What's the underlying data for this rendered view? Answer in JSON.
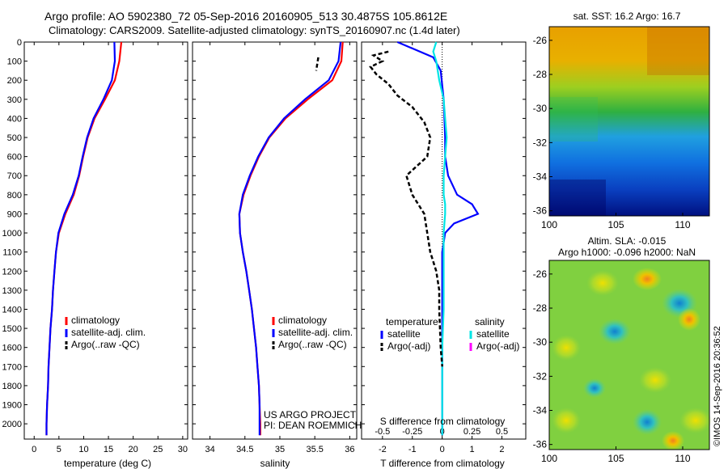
{
  "header": {
    "line1": "Argo profile: AO 5902380_72 05-Sep-2016 20160905_513 30.4875S 105.8612E",
    "line2": "Climatology: CARS2009. Satellite-adjusted climatology: synTS_20160907.nc (1.4d later)"
  },
  "chart_data": [
    {
      "type": "line",
      "id": "temperature",
      "xlabel": "temperature (deg C)",
      "ylabel": "",
      "xlim": [
        -2,
        31
      ],
      "ylim": [
        2080,
        0
      ],
      "y_reversed": true,
      "xticks": [
        0,
        5,
        10,
        15,
        20,
        25,
        30
      ],
      "yticks": [
        0,
        100,
        200,
        300,
        400,
        500,
        600,
        700,
        800,
        900,
        1000,
        1100,
        1200,
        1300,
        1400,
        1500,
        1600,
        1700,
        1800,
        1900,
        2000
      ],
      "legend": [
        "climatology",
        "satellite-adj. clim.",
        "Argo(..raw -QC)"
      ],
      "series": [
        {
          "name": "climatology",
          "color": "#ff0000",
          "x": [
            17.6,
            17.2,
            16.3,
            14.3,
            12.2,
            10.8,
            9.9,
            9.1,
            8.0,
            6.3,
            5.0,
            4.4,
            4.1,
            3.8,
            3.6,
            3.3,
            3.1,
            2.9,
            2.8,
            2.6,
            2.5,
            2.5
          ],
          "y": [
            0,
            100,
            200,
            300,
            400,
            500,
            600,
            700,
            800,
            900,
            1000,
            1100,
            1200,
            1300,
            1400,
            1500,
            1600,
            1700,
            1800,
            1900,
            2000,
            2060
          ]
        },
        {
          "name": "satellite-adj. clim.",
          "color": "#0000ff",
          "x": [
            16.2,
            16.3,
            15.7,
            14.0,
            12.0,
            10.7,
            9.8,
            9.0,
            7.8,
            6.1,
            4.9,
            4.4,
            4.1,
            3.8,
            3.6,
            3.3,
            3.1,
            2.9,
            2.8,
            2.6,
            2.5,
            2.5
          ],
          "y": [
            0,
            100,
            200,
            300,
            400,
            500,
            600,
            700,
            800,
            900,
            1000,
            1100,
            1200,
            1300,
            1400,
            1500,
            1600,
            1700,
            1800,
            1900,
            2000,
            2060
          ]
        }
      ]
    },
    {
      "type": "line",
      "id": "salinity",
      "xlabel": "salinity",
      "xlim": [
        33.75,
        36.1
      ],
      "ylim": [
        2080,
        0
      ],
      "y_reversed": true,
      "xticks": [
        34,
        34.5,
        35,
        35.5,
        36
      ],
      "legend": [
        "climatology",
        "satellite-adj. clim.",
        "Argo(..raw -QC)"
      ],
      "series": [
        {
          "name": "climatology",
          "color": "#ff0000",
          "x": [
            35.9,
            35.88,
            35.75,
            35.4,
            35.08,
            34.85,
            34.7,
            34.58,
            34.48,
            34.42,
            34.43,
            34.47,
            34.52,
            34.56,
            34.6,
            34.63,
            34.66,
            34.68,
            34.7,
            34.71,
            34.72,
            34.72
          ],
          "y": [
            0,
            100,
            200,
            300,
            400,
            500,
            600,
            700,
            800,
            900,
            1000,
            1100,
            1200,
            1300,
            1400,
            1500,
            1600,
            1700,
            1800,
            1900,
            2000,
            2060
          ]
        },
        {
          "name": "satellite-adj. clim.",
          "color": "#0000ff",
          "x": [
            35.87,
            35.84,
            35.7,
            35.36,
            35.06,
            34.84,
            34.69,
            34.57,
            34.47,
            34.42,
            34.43,
            34.47,
            34.52,
            34.56,
            34.6,
            34.63,
            34.66,
            34.68,
            34.7,
            34.71,
            34.71,
            34.71
          ],
          "y": [
            0,
            100,
            200,
            300,
            400,
            500,
            600,
            700,
            800,
            900,
            1000,
            1100,
            1200,
            1300,
            1400,
            1500,
            1600,
            1700,
            1800,
            1900,
            2000,
            2060
          ]
        },
        {
          "name": "Argo",
          "color": "#000000",
          "dashed": true,
          "x": [
            35.55,
            35.52
          ],
          "y": [
            80,
            150
          ]
        }
      ],
      "annotation": [
        "US ARGO PROJECT",
        "PI: DEAN ROEMMICH"
      ]
    },
    {
      "type": "line",
      "id": "difference",
      "xlabel": "T difference from climatology",
      "xlabel_top": "S difference from climatology",
      "xlim": [
        -2.7,
        2.8
      ],
      "ylim": [
        2080,
        0
      ],
      "y_reversed": true,
      "xticks": [
        -2,
        -1,
        0,
        1,
        2
      ],
      "sticks": [
        "-0.5",
        "-0.25",
        "0",
        "0.25",
        "0.5"
      ],
      "legend_titles": [
        "temperature",
        "salinity"
      ],
      "legend": [
        "satellite",
        "Argo(-adj)",
        "satellite",
        "Argo(-adj)"
      ],
      "series": [
        {
          "name": "temperature satellite",
          "color": "#0000ff",
          "x": [
            -1.5,
            -0.9,
            -0.3,
            -0.05,
            0.05,
            0.1,
            0.1,
            0.2,
            0.5,
            1.0,
            1.2,
            0.4,
            0.1,
            0,
            0,
            0,
            0,
            0,
            0,
            0,
            0,
            0
          ],
          "y": [
            0,
            40,
            80,
            150,
            300,
            500,
            600,
            700,
            800,
            850,
            900,
            950,
            1000,
            1100,
            1300,
            1500,
            1700,
            1800,
            1900,
            2000,
            2040,
            2060
          ]
        },
        {
          "name": "salinity satellite",
          "color": "#00e5e5",
          "x": [
            -0.2,
            -0.3,
            -0.2,
            -0.1,
            0.05,
            0.1,
            0.15,
            0.1,
            0.05,
            0.05,
            0.1,
            0.1,
            0.05,
            0.05,
            0.05,
            0,
            0,
            0,
            0,
            0
          ],
          "y": [
            0,
            50,
            100,
            200,
            300,
            400,
            500,
            600,
            700,
            800,
            850,
            900,
            1000,
            1200,
            1400,
            1600,
            1800,
            1900,
            2000,
            2060
          ]
        },
        {
          "name": "temperature Argo(-adj)",
          "color": "#000000",
          "dashed": true,
          "x": [
            -1.8,
            -2.3,
            -2.0,
            -2.4,
            -2.2,
            -1.8,
            -1.5,
            -1.0,
            -0.6,
            -0.4,
            -0.5,
            -1.2,
            -1.0,
            -0.6,
            -0.5,
            -0.4,
            -0.2,
            -0.1,
            -0.1,
            -0.05,
            0
          ],
          "y": [
            50,
            70,
            100,
            130,
            170,
            220,
            280,
            340,
            420,
            500,
            600,
            700,
            800,
            900,
            1000,
            1100,
            1200,
            1300,
            1400,
            1600,
            1700
          ]
        }
      ]
    },
    {
      "type": "heatmap",
      "id": "sst-map",
      "title": "sat. SST: 16.2  Argo: 16.7",
      "xlim": [
        100,
        112
      ],
      "ylim": [
        -36.3,
        -25.2
      ],
      "xticks": [
        100,
        105,
        110
      ],
      "yticks": [
        -26,
        -28,
        -30,
        -32,
        -34,
        -36
      ]
    },
    {
      "type": "heatmap",
      "id": "sla-map",
      "title1": "Altim. SLA: -0.015",
      "title2": "Argo h1000: -0.096  h2000: NaN",
      "xlim": [
        100,
        112
      ],
      "ylim": [
        -36.3,
        -25.2
      ],
      "xticks": [
        100,
        105,
        110
      ],
      "yticks": [
        -26,
        -28,
        -30,
        -32,
        -34,
        -36
      ]
    }
  ],
  "credit": "©IMOS 14-Sep-2016 20:36:52"
}
